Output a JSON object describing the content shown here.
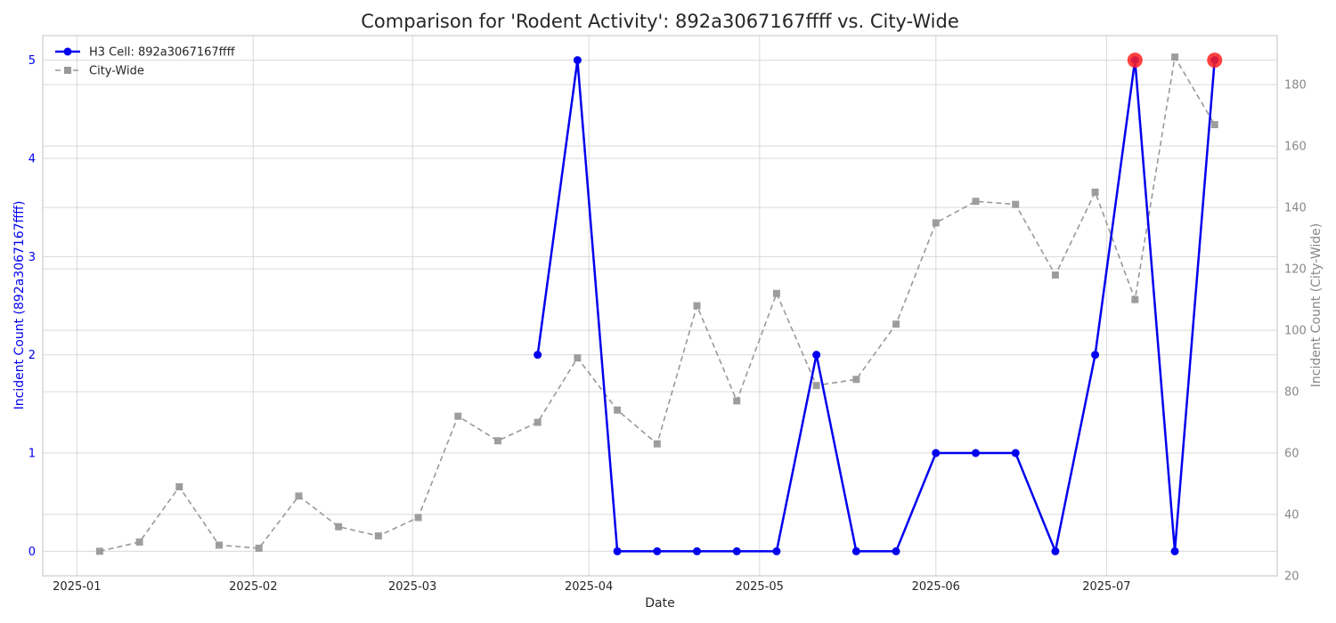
{
  "chart_data": {
    "type": "line",
    "title": "Comparison for 'Rodent Activity': 892a3067167ffff vs. City-Wide",
    "xlabel": "Date",
    "ylabel_left": "Incident Count (892a3067167ffff)",
    "ylabel_right": "Incident Count (City-Wide)",
    "x_ticks": [
      "2025-01",
      "2025-02",
      "2025-03",
      "2025-04",
      "2025-05",
      "2025-06",
      "2025-07"
    ],
    "y_left_ticks": [
      "0",
      "1",
      "2",
      "3",
      "4",
      "5"
    ],
    "y_right_ticks": [
      "20",
      "40",
      "60",
      "80",
      "100",
      "120",
      "140",
      "160",
      "180"
    ],
    "xlim": [
      "2024-12-26",
      "2025-07-31"
    ],
    "ylim_left": [
      -0.25,
      5.25
    ],
    "ylim_right": [
      20,
      196
    ],
    "grid": true,
    "legend_position": "top-left",
    "series": [
      {
        "name": "H3 Cell: 892a3067167ffff",
        "axis": "left",
        "color": "#0000ee",
        "marker": "circle",
        "line_style": "solid",
        "x": [
          "2025-03-23",
          "2025-03-30",
          "2025-04-06",
          "2025-04-13",
          "2025-04-20",
          "2025-04-27",
          "2025-05-04",
          "2025-05-11",
          "2025-05-18",
          "2025-05-25",
          "2025-06-01",
          "2025-06-08",
          "2025-06-15",
          "2025-06-22",
          "2025-06-29",
          "2025-07-06",
          "2025-07-13",
          "2025-07-20"
        ],
        "values": [
          2,
          5,
          0,
          0,
          0,
          0,
          0,
          2,
          0,
          0,
          1,
          1,
          1,
          0,
          2,
          5,
          0,
          5
        ]
      },
      {
        "name": "City-Wide",
        "axis": "right",
        "color": "#999999",
        "marker": "square",
        "line_style": "dashed",
        "x": [
          "2025-01-05",
          "2025-01-12",
          "2025-01-19",
          "2025-01-26",
          "2025-02-02",
          "2025-02-09",
          "2025-02-16",
          "2025-02-23",
          "2025-03-02",
          "2025-03-09",
          "2025-03-16",
          "2025-03-23",
          "2025-03-30",
          "2025-04-06",
          "2025-04-13",
          "2025-04-20",
          "2025-04-27",
          "2025-05-04",
          "2025-05-11",
          "2025-05-18",
          "2025-05-25",
          "2025-06-01",
          "2025-06-08",
          "2025-06-15",
          "2025-06-22",
          "2025-06-29",
          "2025-07-06",
          "2025-07-13",
          "2025-07-20"
        ],
        "values": [
          28,
          31,
          49,
          30,
          29,
          46,
          36,
          33,
          39,
          72,
          64,
          70,
          91,
          74,
          63,
          108,
          77,
          112,
          82,
          84,
          102,
          135,
          142,
          141,
          118,
          145,
          110,
          189,
          167
        ]
      }
    ],
    "highlights": {
      "color": "#ff2020",
      "x": [
        "2025-07-06",
        "2025-07-20"
      ],
      "values": [
        5,
        5
      ]
    }
  }
}
